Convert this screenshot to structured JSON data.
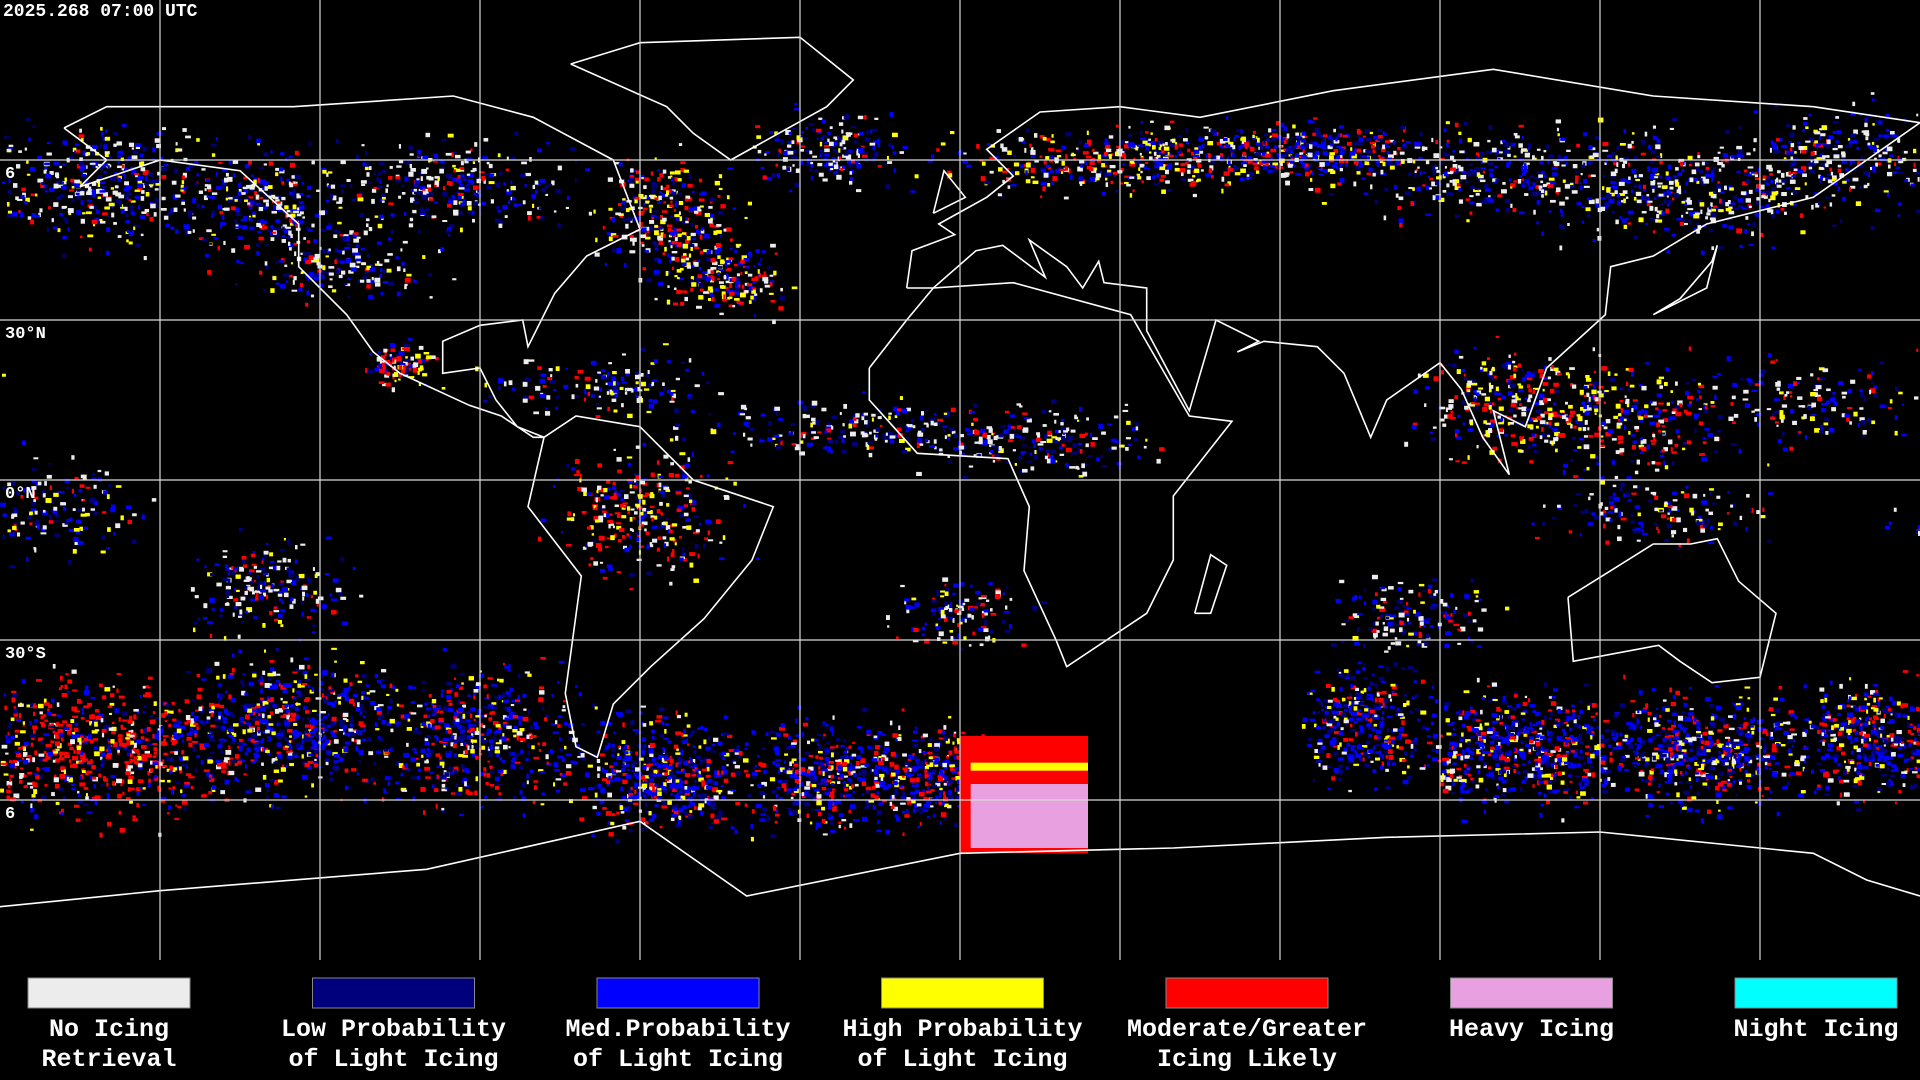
{
  "timestamp": "2025.268 07:00 UTC",
  "lat_labels": [
    "6",
    "30°N",
    "0°N",
    "30°S",
    "6"
  ],
  "legend": [
    {
      "color": "#ececec",
      "lines": [
        "No Icing",
        "Retrieval"
      ]
    },
    {
      "color": "#00007c",
      "lines": [
        "Low Probability",
        "of Light Icing"
      ]
    },
    {
      "color": "#0000ff",
      "lines": [
        "Med.Probability",
        "of Light Icing"
      ]
    },
    {
      "color": "#ffff00",
      "lines": [
        "High Probability",
        "of Light Icing"
      ]
    },
    {
      "color": "#ff0000",
      "lines": [
        "Moderate/Greater",
        "Icing Likely"
      ]
    },
    {
      "color": "#e8a0e0",
      "lines": [
        "Heavy Icing"
      ]
    },
    {
      "color": "#00ffff",
      "lines": [
        "Night Icing"
      ]
    }
  ]
}
